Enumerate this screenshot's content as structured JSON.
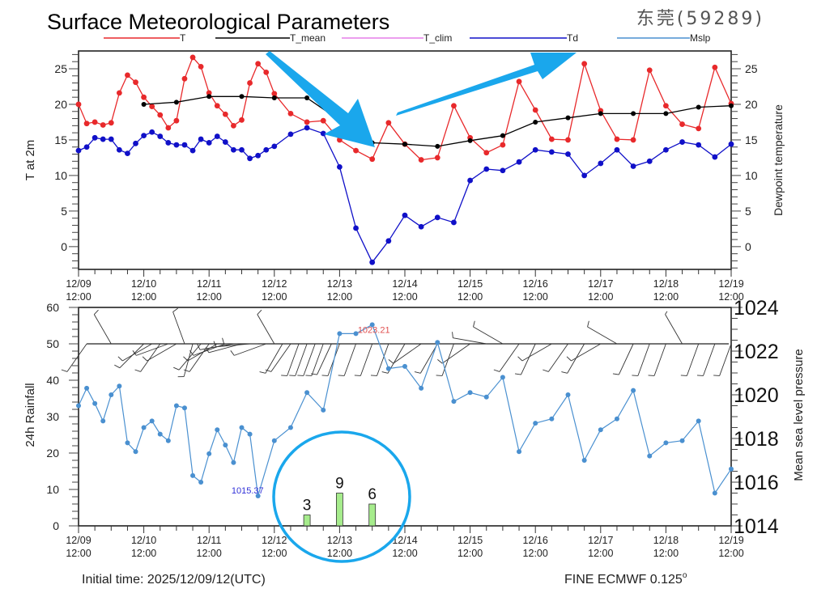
{
  "header": {
    "title": "Surface Meteorological Parameters",
    "station": "东莞(59289)"
  },
  "legend": [
    {
      "label": "T",
      "color": "#e8292b"
    },
    {
      "label": "T_mean",
      "color": "#000000"
    },
    {
      "label": "T_clim",
      "color": "#e67fe8"
    },
    {
      "label": "Td",
      "color": "#1010c8"
    },
    {
      "label": "Mslp",
      "color": "#4a90d0"
    }
  ],
  "footer": {
    "initial_time": "Initial time: 2025/12/09/12(UTC)",
    "model": "FINE ECMWF 0.125",
    "model_unit": "o"
  },
  "annotations": {
    "min_pressure_label": "1015.37",
    "max_pressure_label": "1023.21",
    "arrow_color": "#1aa7ec",
    "circle_color": "#1aa7ec"
  },
  "chart_data": [
    {
      "type": "line",
      "title": "Surface Meteorological Parameters",
      "ylabel": "T at 2m",
      "y2label": "Dewpoint temperature",
      "ylim": [
        -3.2,
        27.5
      ],
      "yticks": [
        0,
        5,
        10,
        15,
        20,
        25
      ],
      "xlim": [
        0,
        240
      ],
      "x_unit": "hours since 12/09 12:00",
      "xtick_labels": [
        [
          "12/09",
          "12:00"
        ],
        [
          "12/10",
          "12:00"
        ],
        [
          "12/11",
          "12:00"
        ],
        [
          "12/12",
          "12:00"
        ],
        [
          "12/13",
          "12:00"
        ],
        [
          "12/14",
          "12:00"
        ],
        [
          "12/15",
          "12:00"
        ],
        [
          "12/16",
          "12:00"
        ],
        [
          "12/17",
          "12:00"
        ],
        [
          "12/18",
          "12:00"
        ],
        [
          "12/19",
          "12:00"
        ]
      ],
      "series": [
        {
          "name": "T",
          "color": "#e8292b",
          "x": [
            0,
            3,
            6,
            9,
            12,
            15,
            18,
            21,
            24,
            27,
            30,
            33,
            36,
            39,
            42,
            45,
            48,
            51,
            54,
            57,
            60,
            63,
            66,
            69,
            72,
            78,
            84,
            90,
            96,
            102,
            108,
            114,
            120,
            126,
            132,
            138,
            144,
            150,
            156,
            162,
            168,
            174,
            180,
            186,
            192,
            198,
            204,
            210,
            216,
            222,
            228,
            234,
            240
          ],
          "values": [
            20.0,
            17.3,
            17.5,
            17.1,
            17.4,
            21.6,
            24.1,
            23.1,
            21.0,
            19.7,
            18.5,
            16.7,
            17.7,
            23.6,
            26.6,
            25.3,
            21.6,
            19.8,
            18.6,
            17.0,
            17.8,
            23.0,
            25.7,
            24.5,
            21.5,
            18.7,
            17.5,
            17.7,
            15.0,
            13.5,
            12.3,
            17.4,
            14.4,
            12.2,
            12.5,
            19.8,
            15.3,
            13.2,
            14.3,
            23.2,
            19.2,
            15.1,
            15.0,
            25.7,
            19.1,
            15.1,
            15.0,
            24.8,
            19.8,
            17.2,
            16.6,
            25.2,
            20.1
          ]
        },
        {
          "name": "T_mean",
          "color": "#000000",
          "x": [
            24,
            36,
            48,
            60,
            72,
            84,
            108,
            120,
            132,
            144,
            156,
            168,
            180,
            192,
            204,
            216,
            228,
            240
          ],
          "values": [
            20.0,
            20.3,
            21.1,
            21.1,
            20.9,
            20.9,
            14.6,
            14.4,
            14.1,
            14.9,
            15.6,
            17.5,
            18.1,
            18.7,
            18.7,
            18.7,
            19.6,
            19.8
          ]
        },
        {
          "name": "T_clim",
          "color": "#e67fe8",
          "x": [],
          "values": []
        },
        {
          "name": "Td",
          "color": "#1010c8",
          "x": [
            0,
            3,
            6,
            9,
            12,
            15,
            18,
            21,
            24,
            27,
            30,
            33,
            36,
            39,
            42,
            45,
            48,
            51,
            54,
            57,
            60,
            63,
            66,
            69,
            72,
            78,
            84,
            90,
            96,
            102,
            108,
            114,
            120,
            126,
            132,
            138,
            144,
            150,
            156,
            162,
            168,
            174,
            180,
            186,
            192,
            198,
            204,
            210,
            216,
            222,
            228,
            234,
            240
          ],
          "values": [
            13.5,
            14.0,
            15.3,
            15.1,
            15.1,
            13.6,
            13.1,
            14.5,
            15.6,
            16.1,
            15.5,
            14.6,
            14.3,
            14.3,
            13.5,
            15.1,
            14.6,
            15.5,
            14.7,
            13.6,
            13.6,
            12.4,
            12.8,
            13.6,
            14.1,
            15.8,
            16.7,
            15.9,
            11.2,
            2.6,
            -2.2,
            0.8,
            4.4,
            2.8,
            4.1,
            3.4,
            9.3,
            10.9,
            10.7,
            11.9,
            13.6,
            13.3,
            13.0,
            10.0,
            11.7,
            13.6,
            11.3,
            12.0,
            13.6,
            14.7,
            14.3,
            12.6,
            14.4
          ]
        }
      ]
    },
    {
      "type": "bar",
      "ylabel": "24h Rainfall",
      "y2label": "Mean sea level pressure",
      "ylim": [
        0,
        60
      ],
      "yticks": [
        0,
        10,
        20,
        30,
        40,
        50,
        60
      ],
      "y2lim": [
        1014,
        1024
      ],
      "y2ticks": [
        1014,
        1016,
        1018,
        1020,
        1022,
        1024
      ],
      "xlim": [
        0,
        240
      ],
      "xtick_labels": [
        [
          "12/09",
          "12:00"
        ],
        [
          "12/10",
          "12:00"
        ],
        [
          "12/11",
          "12:00"
        ],
        [
          "12/12",
          "12:00"
        ],
        [
          "12/13",
          "12:00"
        ],
        [
          "12/14",
          "12:00"
        ],
        [
          "12/15",
          "12:00"
        ],
        [
          "12/16",
          "12:00"
        ],
        [
          "12/17",
          "12:00"
        ],
        [
          "12/18",
          "12:00"
        ],
        [
          "12/19",
          "12:00"
        ]
      ],
      "rainfall": {
        "name": "24h Rainfall",
        "color": "#a6ec8c",
        "x": [
          84,
          96,
          108
        ],
        "values": [
          3,
          9,
          6
        ],
        "labels": [
          "3",
          "9",
          "6"
        ]
      },
      "mslp": {
        "name": "Mslp",
        "color": "#4a90d0",
        "x": [
          0,
          3,
          6,
          9,
          12,
          15,
          18,
          21,
          24,
          27,
          30,
          33,
          36,
          39,
          42,
          45,
          48,
          51,
          54,
          57,
          60,
          63,
          66,
          72,
          78,
          84,
          90,
          96,
          102,
          108,
          114,
          120,
          126,
          132,
          138,
          144,
          150,
          156,
          162,
          168,
          174,
          180,
          186,
          192,
          198,
          204,
          210,
          216,
          222,
          228,
          234,
          240
        ],
        "values": [
          1019.5,
          1020.3,
          1019.6,
          1018.8,
          1020.0,
          1020.4,
          1017.8,
          1017.4,
          1018.5,
          1018.8,
          1018.2,
          1017.9,
          1019.5,
          1019.4,
          1016.3,
          1016.0,
          1017.3,
          1018.4,
          1017.7,
          1016.9,
          1018.5,
          1018.2,
          1015.37,
          1017.9,
          1018.5,
          1020.1,
          1019.3,
          1022.8,
          1022.8,
          1023.21,
          1021.2,
          1021.3,
          1020.3,
          1022.4,
          1019.7,
          1020.1,
          1019.9,
          1020.8,
          1017.4,
          1018.7,
          1018.9,
          1020.0,
          1017.0,
          1018.4,
          1018.9,
          1020.2,
          1017.2,
          1017.8,
          1017.9,
          1018.8,
          1015.5,
          1016.6
        ]
      },
      "wind_barbs": {
        "baseline": 50,
        "x": [
          3,
          12,
          24,
          27,
          30,
          33,
          36,
          39,
          42,
          45,
          48,
          51,
          54,
          57,
          60,
          63,
          66,
          69,
          72,
          75,
          78,
          81,
          84,
          87,
          90,
          93,
          96,
          102,
          108,
          114,
          120,
          126,
          132,
          138,
          144,
          150,
          156,
          162,
          168,
          174,
          180,
          186,
          192,
          198,
          204,
          210,
          216,
          222,
          228,
          234,
          240
        ],
        "direction_deg": [
          215,
          330,
          225,
          240,
          215,
          250,
          240,
          340,
          195,
          220,
          215,
          240,
          250,
          260,
          255,
          265,
          270,
          250,
          330,
          210,
          215,
          200,
          200,
          200,
          200,
          205,
          200,
          200,
          200,
          200,
          210,
          235,
          210,
          200,
          235,
          280,
          300,
          215,
          205,
          240,
          215,
          210,
          240,
          300,
          205,
          200,
          200,
          330,
          200,
          200,
          200
        ],
        "speed_kt": [
          10,
          10,
          10,
          10,
          10,
          10,
          10,
          10,
          10,
          10,
          10,
          10,
          10,
          10,
          10,
          10,
          10,
          10,
          10,
          10,
          10,
          10,
          10,
          10,
          10,
          10,
          10,
          10,
          10,
          10,
          10,
          10,
          10,
          10,
          10,
          10,
          10,
          10,
          10,
          10,
          10,
          10,
          10,
          10,
          10,
          10,
          10,
          5,
          10,
          10,
          10
        ]
      }
    }
  ]
}
